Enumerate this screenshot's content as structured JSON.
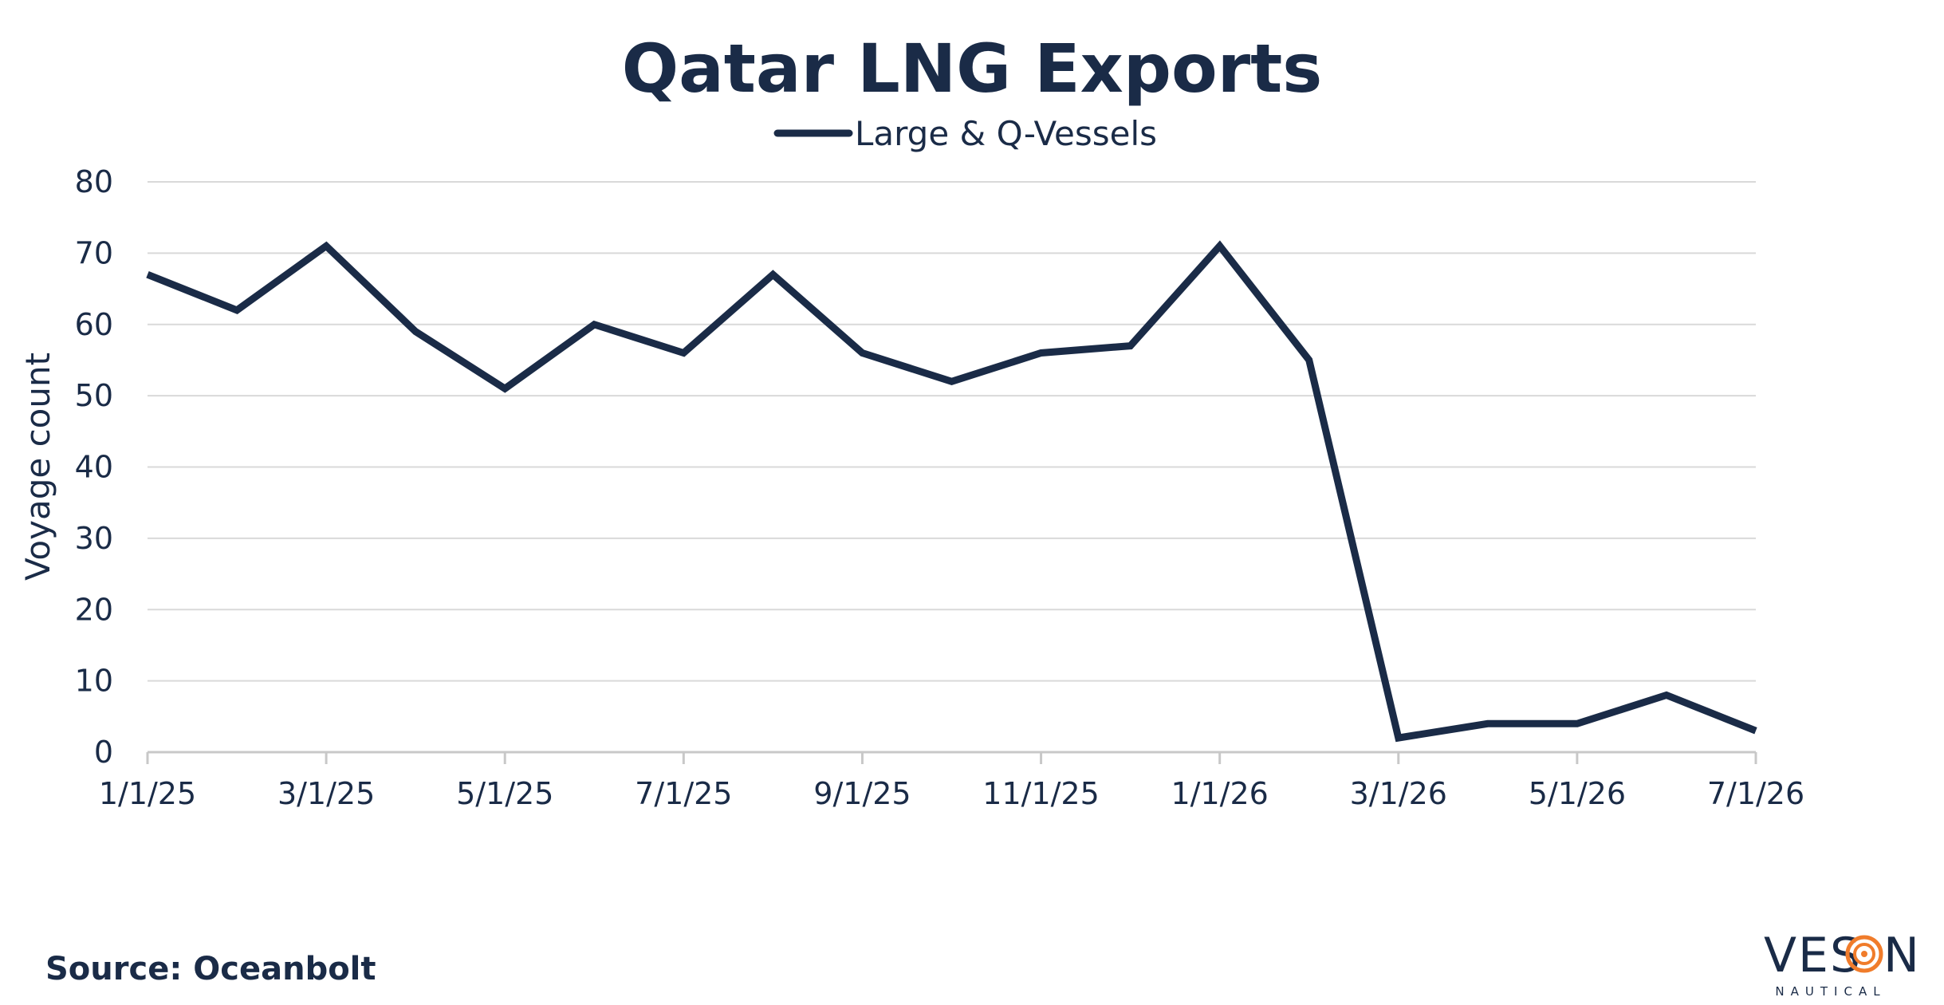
{
  "chart_data": {
    "type": "line",
    "title": "Qatar LNG Exports",
    "ylabel": "Voyage count",
    "xlabel": "",
    "ylim": [
      0,
      80
    ],
    "yticks": [
      "0",
      "10",
      "20",
      "30",
      "40",
      "50",
      "60",
      "70",
      "80"
    ],
    "x": [
      "1/1/25",
      "2/1/25",
      "3/1/25",
      "4/1/25",
      "5/1/25",
      "6/1/25",
      "7/1/25",
      "8/1/25",
      "9/1/25",
      "10/1/25",
      "11/1/25",
      "12/1/25",
      "1/1/26",
      "2/1/26",
      "3/1/26",
      "4/1/26",
      "5/1/26",
      "6/1/26",
      "7/1/26"
    ],
    "xticks": [
      "1/1/25",
      "3/1/25",
      "5/1/25",
      "7/1/25",
      "9/1/25",
      "11/1/25",
      "1/1/26",
      "3/1/26",
      "5/1/26",
      "7/1/26"
    ],
    "series": [
      {
        "name": "Large & Q-Vessels",
        "values": [
          67,
          62,
          71,
          59,
          51,
          60,
          56,
          67,
          56,
          52,
          56,
          57,
          71,
          55,
          2,
          4,
          4,
          8,
          3
        ],
        "color": "#1a2b47"
      }
    ],
    "grid": true,
    "legend": "top-center"
  },
  "footer": {
    "source": "Source: Oceanbolt"
  },
  "logo": {
    "name": "veson-logo",
    "text_pre": "VES",
    "text_post": "N",
    "subtitle": "NAUTICAL",
    "accent": "#f07c2b"
  }
}
